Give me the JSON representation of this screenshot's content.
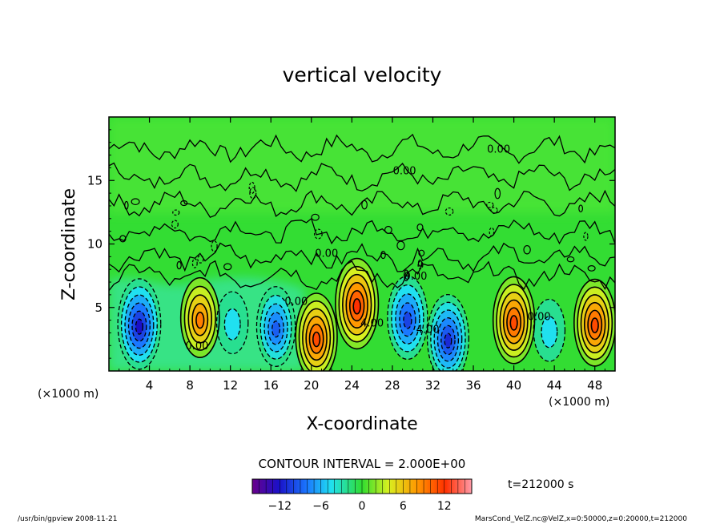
{
  "chart_data": {
    "type": "heatmap",
    "title": "vertical velocity",
    "xlabel": "X-coordinate",
    "ylabel": "Z-coordinate",
    "x_unit_left": "(×1000 m)",
    "x_unit_right": "(×1000 m)",
    "xlim": [
      0,
      50
    ],
    "ylim": [
      0,
      20
    ],
    "xticks": [
      4,
      8,
      12,
      16,
      20,
      24,
      28,
      32,
      36,
      40,
      44,
      48
    ],
    "yticks": [
      5,
      10,
      15
    ],
    "contour_interval_label": "CONTOUR INTERVAL = 2.000E+00",
    "time_label": "t=212000 s",
    "colorbar": {
      "min": -16,
      "max": 16,
      "ticks": [
        -12,
        -6,
        0,
        6,
        12
      ]
    },
    "contour_labels": [
      {
        "text": "0.00",
        "x": 38.5,
        "y": 17.2
      },
      {
        "text": "0.00",
        "x": 29.2,
        "y": 15.5
      },
      {
        "text": "0.00",
        "x": 21.5,
        "y": 9.0
      },
      {
        "text": "0.00",
        "x": 18.5,
        "y": 5.2
      },
      {
        "text": "0.00",
        "x": 8.7,
        "y": 1.7
      },
      {
        "text": "4.00",
        "x": 26.0,
        "y": 3.5
      },
      {
        "text": "0.00",
        "x": 30.3,
        "y": 7.2
      },
      {
        "text": "4.00",
        "x": 31.5,
        "y": 3.0
      },
      {
        "text": "0.00",
        "x": 42.5,
        "y": 4.0
      }
    ],
    "cells": [
      {
        "x": 3.0,
        "z": 3.7,
        "value": -12
      },
      {
        "x": 9.0,
        "z": 4.2,
        "value": 9
      },
      {
        "x": 12.2,
        "z": 3.8,
        "value": -4
      },
      {
        "x": 16.5,
        "z": 3.5,
        "value": -9
      },
      {
        "x": 20.5,
        "z": 2.7,
        "value": 11
      },
      {
        "x": 24.5,
        "z": 5.3,
        "value": 12
      },
      {
        "x": 29.5,
        "z": 4.2,
        "value": -10
      },
      {
        "x": 33.5,
        "z": 2.6,
        "value": -11
      },
      {
        "x": 40.0,
        "z": 4.0,
        "value": 11
      },
      {
        "x": 43.5,
        "z": 3.2,
        "value": -4
      },
      {
        "x": 48.0,
        "z": 3.8,
        "value": 11
      }
    ]
  },
  "footer": {
    "left": "/usr/bin/gpview  2008-11-21",
    "right": "MarsCond_VelZ.nc@VelZ,x=0:50000,z=0:20000,t=212000"
  },
  "colors": {
    "background_field": "#33dd33",
    "positive": "#ff7a00",
    "negative": "#1050ff"
  }
}
